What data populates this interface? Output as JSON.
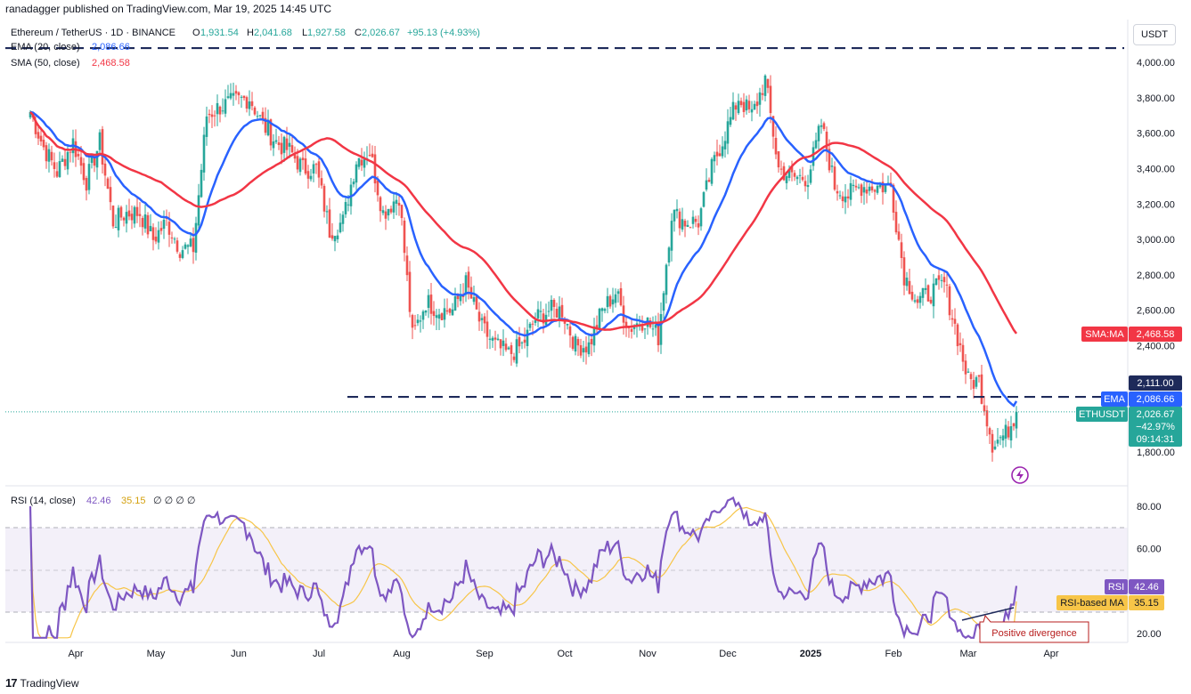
{
  "header": {
    "published": "ranadagger published on TradingView.com, Mar 19, 2025 14:45 UTC"
  },
  "legend": {
    "symbol": "Ethereum / TetherUS · 1D · BINANCE",
    "o_label": "O",
    "o": "1,931.54",
    "h_label": "H",
    "h": "2,041.68",
    "l_label": "L",
    "l": "1,927.58",
    "c_label": "C",
    "c": "2,026.67",
    "change": "+95.13 (+4.93%)",
    "ema_label": "EMA (20, close)",
    "ema_value": "2,086.66",
    "sma_label": "SMA (50, close)",
    "sma_value": "2,468.58",
    "rsi_label": "RSI (14, close)",
    "rsi_value": "42.46",
    "rsi_ma_value": "35.15",
    "rsi_extra": "∅ ∅ ∅ ∅"
  },
  "price_axis": {
    "unit": "USDT",
    "ticks": [
      "4,000.00",
      "3,800.00",
      "3,600.00",
      "3,400.00",
      "3,200.00",
      "3,000.00",
      "2,800.00",
      "2,600.00",
      "2,400.00",
      "1,800.00"
    ]
  },
  "rsi_axis": {
    "ticks": [
      "80.00",
      "60.00",
      "20.00"
    ]
  },
  "time_axis": {
    "labels": [
      "Apr",
      "May",
      "Jun",
      "Jul",
      "Aug",
      "Sep",
      "Oct",
      "Nov",
      "Dec",
      "2025",
      "Feb",
      "Mar",
      "Apr"
    ]
  },
  "price_tags": {
    "sma_name": "SMA:MA",
    "sma_value": "2,468.58",
    "level_value": "2,111.00",
    "ema_name": "EMA",
    "ema_value": "2,086.66",
    "symbol_name": "ETHUSDT",
    "price": "2,026.67",
    "change": "−42.97%",
    "countdown": "09:14:31",
    "rsi_name": "RSI",
    "rsi_value": "42.46",
    "rsi_ma_name": "RSI-based MA",
    "rsi_ma_value": "35.15"
  },
  "annotation": {
    "divergence": "Positive divergence"
  },
  "footer": {
    "brand": "TradingView"
  },
  "colors": {
    "up": "#26a69a",
    "down": "#ef5350",
    "ema": "#2962ff",
    "sma": "#f23645",
    "rsi": "#7e57c2",
    "rsi_ma": "#f7c548",
    "level": "#1e2a5a",
    "tag_dark": "#131722"
  },
  "chart_data": {
    "type": "candlestick",
    "price_range": [
      1700,
      4100
    ],
    "resistance_level": 4080,
    "support_level": 2111,
    "approx_closes": [
      [
        "2024-03-15",
        3720
      ],
      [
        "2024-03-20",
        3520
      ],
      [
        "2024-03-25",
        3380
      ],
      [
        "2024-03-31",
        3550
      ],
      [
        "2024-04-05",
        3330
      ],
      [
        "2024-04-10",
        3550
      ],
      [
        "2024-04-15",
        3100
      ],
      [
        "2024-04-20",
        3150
      ],
      [
        "2024-04-25",
        3150
      ],
      [
        "2024-04-30",
        3000
      ],
      [
        "2024-05-05",
        3100
      ],
      [
        "2024-05-10",
        2950
      ],
      [
        "2024-05-15",
        2950
      ],
      [
        "2024-05-20",
        3700
      ],
      [
        "2024-05-25",
        3750
      ],
      [
        "2024-05-31",
        3780
      ],
      [
        "2024-06-05",
        3800
      ],
      [
        "2024-06-10",
        3650
      ],
      [
        "2024-06-15",
        3550
      ],
      [
        "2024-06-20",
        3500
      ],
      [
        "2024-06-25",
        3400
      ],
      [
        "2024-06-30",
        3400
      ],
      [
        "2024-07-05",
        3050
      ],
      [
        "2024-07-10",
        3100
      ],
      [
        "2024-07-15",
        3450
      ],
      [
        "2024-07-20",
        3500
      ],
      [
        "2024-07-25",
        3150
      ],
      [
        "2024-07-31",
        3250
      ],
      [
        "2024-08-05",
        2450
      ],
      [
        "2024-08-10",
        2650
      ],
      [
        "2024-08-15",
        2600
      ],
      [
        "2024-08-20",
        2600
      ],
      [
        "2024-08-25",
        2750
      ],
      [
        "2024-08-31",
        2500
      ],
      [
        "2024-09-05",
        2400
      ],
      [
        "2024-09-10",
        2350
      ],
      [
        "2024-09-15",
        2400
      ],
      [
        "2024-09-20",
        2550
      ],
      [
        "2024-09-25",
        2600
      ],
      [
        "2024-09-30",
        2600
      ],
      [
        "2024-10-05",
        2400
      ],
      [
        "2024-10-10",
        2400
      ],
      [
        "2024-10-15",
        2600
      ],
      [
        "2024-10-20",
        2700
      ],
      [
        "2024-10-25",
        2500
      ],
      [
        "2024-10-31",
        2550
      ],
      [
        "2024-11-05",
        2450
      ],
      [
        "2024-11-10",
        3150
      ],
      [
        "2024-11-15",
        3100
      ],
      [
        "2024-11-20",
        3100
      ],
      [
        "2024-11-25",
        3400
      ],
      [
        "2024-11-30",
        3600
      ],
      [
        "2024-12-05",
        3800
      ],
      [
        "2024-12-10",
        3700
      ],
      [
        "2024-12-15",
        3900
      ],
      [
        "2024-12-20",
        3400
      ],
      [
        "2024-12-25",
        3350
      ],
      [
        "2024-12-31",
        3350
      ],
      [
        "2025-01-05",
        3650
      ],
      [
        "2025-01-10",
        3300
      ],
      [
        "2025-01-15",
        3250
      ],
      [
        "2025-01-20",
        3300
      ],
      [
        "2025-01-25",
        3300
      ],
      [
        "2025-01-31",
        3300
      ],
      [
        "2025-02-05",
        2800
      ],
      [
        "2025-02-10",
        2650
      ],
      [
        "2025-02-15",
        2700
      ],
      [
        "2025-02-20",
        2750
      ],
      [
        "2025-02-25",
        2450
      ],
      [
        "2025-03-01",
        2200
      ],
      [
        "2025-03-05",
        2200
      ],
      [
        "2025-03-10",
        1850
      ],
      [
        "2025-03-15",
        1900
      ],
      [
        "2025-03-19",
        2026.67
      ]
    ],
    "ema20_last": 2086.66,
    "sma50_last": 2468.58,
    "rsi_range": [
      15,
      85
    ],
    "rsi_levels": [
      70,
      30
    ],
    "rsi_last": 42.46,
    "rsi_ma_last": 35.15
  }
}
